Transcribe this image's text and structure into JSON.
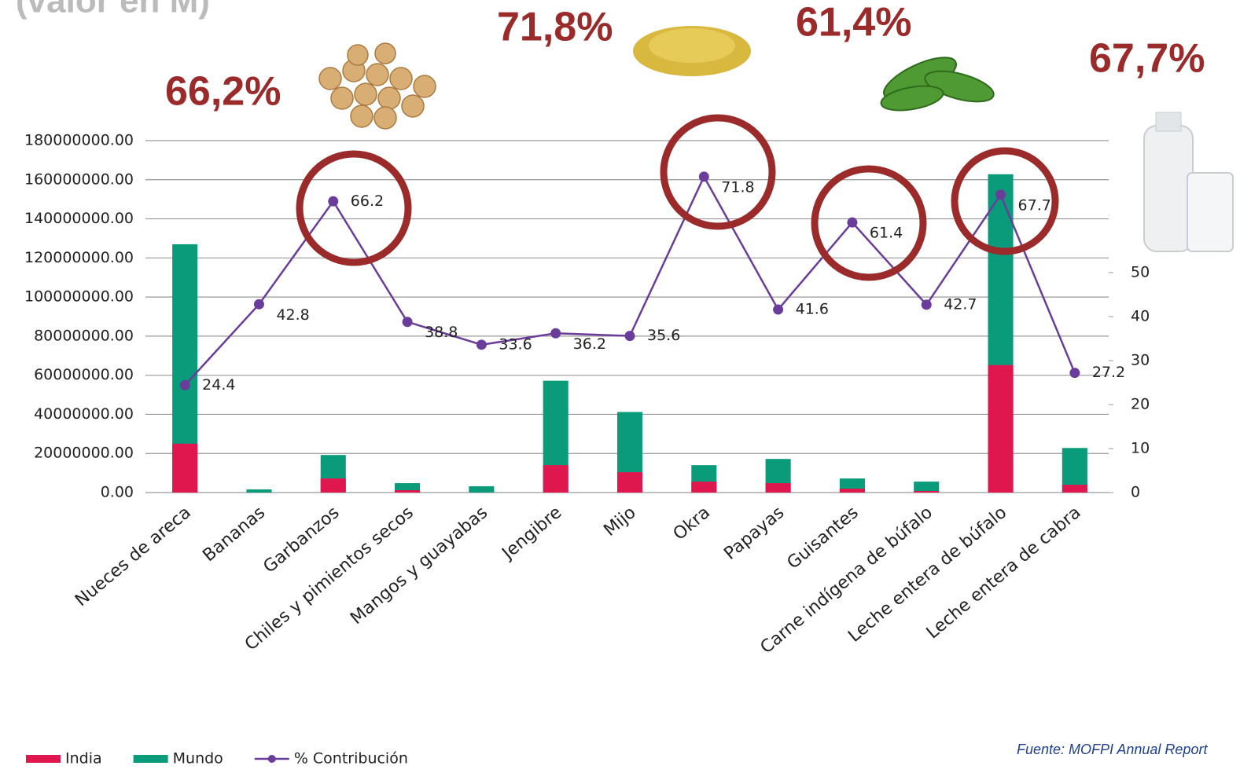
{
  "chart_data": {
    "type": "bar_line",
    "title": "(valor en M)",
    "categories": [
      "Nueces de areca",
      "Bananas",
      "Garbanzos",
      "Chiles y pimientos secos",
      "Mangos y guayabas",
      "Jengibre",
      "Mijo",
      "Okra",
      "Papayas",
      "Guisantes",
      "Carne indígena de búfalo",
      "Leche entera de búfalo",
      "Leche entera de cabra"
    ],
    "series": [
      {
        "name": "Mundo",
        "color": "#0a9b7a",
        "values": [
          127000000,
          1600000,
          19200000,
          4800000,
          3200000,
          57200000,
          41200000,
          14000000,
          17200000,
          7200000,
          5600000,
          162800000,
          22800000
        ]
      },
      {
        "name": "India",
        "color": "#e0174f",
        "values": [
          25000000,
          0,
          7200000,
          1200000,
          0,
          14000000,
          10400000,
          5600000,
          4800000,
          2000000,
          800000,
          65200000,
          4000000
        ]
      },
      {
        "name": "% Contribución",
        "color": "#6a3d9a",
        "axis": "y2",
        "values": [
          24.4,
          42.8,
          66.2,
          38.8,
          33.6,
          36.2,
          35.6,
          71.8,
          41.6,
          61.4,
          42.7,
          67.7,
          27.2
        ]
      }
    ],
    "ylim": [
      0,
      180000000
    ],
    "yticks": [
      {
        "value": 0,
        "label": "0.00"
      },
      {
        "value": 20000000,
        "label": "20000000.00"
      },
      {
        "value": 40000000,
        "label": "40000000.00"
      },
      {
        "value": 60000000,
        "label": "60000000.00"
      },
      {
        "value": 80000000,
        "label": "80000000.00"
      },
      {
        "value": 100000000,
        "label": "100000000.00"
      },
      {
        "value": 120000000,
        "label": "120000000.00"
      },
      {
        "value": 140000000,
        "label": "140000000.00"
      },
      {
        "value": 160000000,
        "label": "160000000.00"
      },
      {
        "value": 180000000,
        "label": "180000000.00"
      }
    ],
    "y2lim": [
      0,
      80
    ],
    "y2ticks": [
      0,
      10,
      20,
      30,
      40,
      50
    ],
    "grid": true,
    "legend": "bottom-left",
    "annotations": [
      "66,2%",
      "71,8%",
      "61,4%",
      "67,7%"
    ],
    "source": "Fuente: MOFPI Annual Report"
  }
}
